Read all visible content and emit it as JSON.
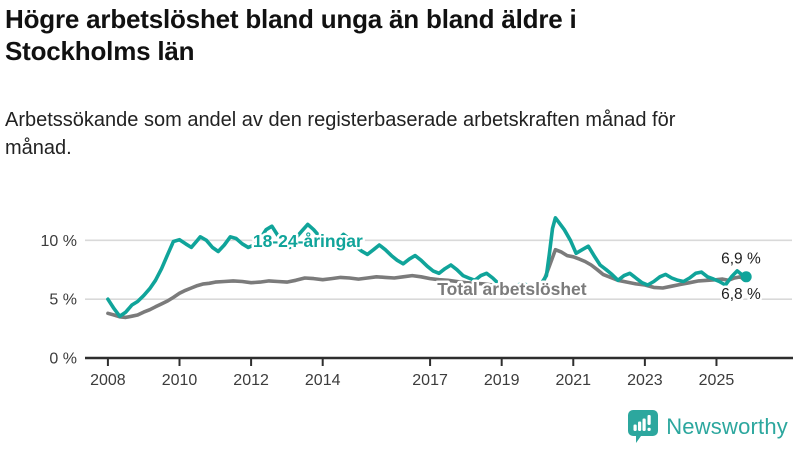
{
  "header": {
    "title": "Högre arbetslöshet bland unga än bland äldre i Stockholms län",
    "subtitle": "Arbetssökande som andel av den registerbaserade arbetskraften månad för månad."
  },
  "branding": {
    "name": "Newsworthy",
    "color": "#2ca79e"
  },
  "chart_data": {
    "type": "line",
    "title": "Högre arbetslöshet bland unga än bland äldre i Stockholms län",
    "xlabel": "",
    "ylabel": "",
    "xlim": [
      2007.36,
      2027.11
    ],
    "ylim": [
      0,
      13
    ],
    "grid": "horizontal",
    "legend_position": "inline-labels",
    "colors": {
      "axis": "#2e2e2e",
      "grid": "#d9d9d9",
      "value_label": "#1f1f1f"
    },
    "y_ticks": [
      {
        "value": 0,
        "label": "0 %"
      },
      {
        "value": 5,
        "label": "5 %"
      },
      {
        "value": 10,
        "label": "10 %"
      }
    ],
    "x_ticks": [
      {
        "year": 2008,
        "label": "2008"
      },
      {
        "year": 2010,
        "label": "2010"
      },
      {
        "year": 2012,
        "label": "2012"
      },
      {
        "year": 2014,
        "label": "2014"
      },
      {
        "year": 2017,
        "label": "2017"
      },
      {
        "year": 2019,
        "label": "2019"
      },
      {
        "year": 2021,
        "label": "2021"
      },
      {
        "year": 2023,
        "label": "2023"
      },
      {
        "year": 2025,
        "label": "2025"
      }
    ],
    "series": [
      {
        "name": "18-24-åringar",
        "color": "#10a49a",
        "end_label": "6,9 %",
        "end_dot": true,
        "label_pos": {
          "year": 2012.05,
          "value": 9.95
        },
        "points": [
          [
            2008,
            5.0
          ],
          [
            2008.17,
            4.2
          ],
          [
            2008.33,
            3.55
          ],
          [
            2008.5,
            3.9
          ],
          [
            2008.67,
            4.5
          ],
          [
            2008.83,
            4.8
          ],
          [
            2009,
            5.3
          ],
          [
            2009.17,
            5.9
          ],
          [
            2009.33,
            6.6
          ],
          [
            2009.5,
            7.6
          ],
          [
            2009.67,
            8.8
          ],
          [
            2009.83,
            9.9
          ],
          [
            2010,
            10.05
          ],
          [
            2010.17,
            9.7
          ],
          [
            2010.33,
            9.4
          ],
          [
            2010.5,
            10.0
          ],
          [
            2010.58,
            10.3
          ],
          [
            2010.75,
            10.0
          ],
          [
            2010.92,
            9.4
          ],
          [
            2011.08,
            9.05
          ],
          [
            2011.25,
            9.6
          ],
          [
            2011.42,
            10.3
          ],
          [
            2011.58,
            10.15
          ],
          [
            2011.75,
            9.7
          ],
          [
            2011.92,
            9.4
          ],
          [
            2012.08,
            9.6
          ],
          [
            2012.25,
            10.1
          ],
          [
            2012.42,
            10.9
          ],
          [
            2012.58,
            11.2
          ],
          [
            2012.75,
            10.4
          ],
          [
            2012.92,
            9.5
          ],
          [
            2013.08,
            9.4
          ],
          [
            2013.25,
            10.2
          ],
          [
            2013.42,
            10.8
          ],
          [
            2013.58,
            11.35
          ],
          [
            2013.75,
            10.9
          ],
          [
            2013.92,
            10.3
          ],
          [
            2014.08,
            9.9
          ],
          [
            2014.25,
            9.6
          ],
          [
            2014.42,
            10.0
          ],
          [
            2014.58,
            10.5
          ],
          [
            2014.75,
            10.1
          ],
          [
            2014.92,
            9.5
          ],
          [
            2015.08,
            9.1
          ],
          [
            2015.25,
            8.8
          ],
          [
            2015.42,
            9.2
          ],
          [
            2015.58,
            9.6
          ],
          [
            2015.75,
            9.2
          ],
          [
            2015.92,
            8.7
          ],
          [
            2016.08,
            8.3
          ],
          [
            2016.25,
            8.0
          ],
          [
            2016.42,
            8.4
          ],
          [
            2016.58,
            8.7
          ],
          [
            2016.75,
            8.3
          ],
          [
            2016.92,
            7.8
          ],
          [
            2017.08,
            7.4
          ],
          [
            2017.25,
            7.2
          ],
          [
            2017.42,
            7.6
          ],
          [
            2017.58,
            7.9
          ],
          [
            2017.75,
            7.5
          ],
          [
            2017.92,
            7.0
          ],
          [
            2018.08,
            6.8
          ],
          [
            2018.25,
            6.6
          ],
          [
            2018.42,
            7.0
          ],
          [
            2018.58,
            7.2
          ],
          [
            2018.75,
            6.8
          ],
          [
            2018.92,
            6.3
          ],
          [
            2019.08,
            5.9
          ],
          [
            2019.25,
            5.7
          ],
          [
            2019.42,
            6.1
          ],
          [
            2019.58,
            6.4
          ],
          [
            2019.75,
            6.1
          ],
          [
            2019.92,
            5.9
          ],
          [
            2020.08,
            6.2
          ],
          [
            2020.25,
            7.0
          ],
          [
            2020.33,
            8.8
          ],
          [
            2020.42,
            11.0
          ],
          [
            2020.5,
            11.9
          ],
          [
            2020.58,
            11.6
          ],
          [
            2020.75,
            10.9
          ],
          [
            2020.92,
            10.0
          ],
          [
            2021.08,
            8.9
          ],
          [
            2021.25,
            9.2
          ],
          [
            2021.42,
            9.5
          ],
          [
            2021.58,
            8.7
          ],
          [
            2021.75,
            7.9
          ],
          [
            2021.92,
            7.5
          ],
          [
            2022.08,
            7.1
          ],
          [
            2022.25,
            6.6
          ],
          [
            2022.42,
            7.0
          ],
          [
            2022.58,
            7.2
          ],
          [
            2022.75,
            6.8
          ],
          [
            2022.92,
            6.4
          ],
          [
            2023.08,
            6.2
          ],
          [
            2023.25,
            6.5
          ],
          [
            2023.42,
            6.9
          ],
          [
            2023.58,
            7.1
          ],
          [
            2023.75,
            6.8
          ],
          [
            2023.92,
            6.6
          ],
          [
            2024.08,
            6.5
          ],
          [
            2024.25,
            6.8
          ],
          [
            2024.42,
            7.2
          ],
          [
            2024.58,
            7.3
          ],
          [
            2024.75,
            6.9
          ],
          [
            2024.92,
            6.7
          ],
          [
            2025.08,
            6.5
          ],
          [
            2025.25,
            6.2
          ],
          [
            2025.42,
            6.9
          ],
          [
            2025.58,
            7.4
          ],
          [
            2025.7,
            7.1
          ],
          [
            2025.83,
            6.9
          ]
        ]
      },
      {
        "name": "Total arbetslöshet",
        "color": "#7b7b7b",
        "end_label": "6,8 %",
        "end_dot": false,
        "label_pos": {
          "year": 2017.2,
          "value": 5.85
        },
        "points": [
          [
            2008,
            3.8
          ],
          [
            2008.17,
            3.65
          ],
          [
            2008.33,
            3.5
          ],
          [
            2008.5,
            3.45
          ],
          [
            2008.67,
            3.55
          ],
          [
            2008.83,
            3.65
          ],
          [
            2009,
            3.9
          ],
          [
            2009.17,
            4.1
          ],
          [
            2009.33,
            4.35
          ],
          [
            2009.5,
            4.6
          ],
          [
            2009.67,
            4.85
          ],
          [
            2009.83,
            5.15
          ],
          [
            2010,
            5.5
          ],
          [
            2010.17,
            5.75
          ],
          [
            2010.33,
            5.95
          ],
          [
            2010.5,
            6.15
          ],
          [
            2010.67,
            6.3
          ],
          [
            2010.83,
            6.35
          ],
          [
            2011,
            6.45
          ],
          [
            2011.25,
            6.5
          ],
          [
            2011.5,
            6.55
          ],
          [
            2011.75,
            6.5
          ],
          [
            2012,
            6.4
          ],
          [
            2012.25,
            6.45
          ],
          [
            2012.5,
            6.55
          ],
          [
            2012.75,
            6.5
          ],
          [
            2013,
            6.45
          ],
          [
            2013.25,
            6.6
          ],
          [
            2013.5,
            6.8
          ],
          [
            2013.75,
            6.75
          ],
          [
            2014,
            6.65
          ],
          [
            2014.25,
            6.75
          ],
          [
            2014.5,
            6.85
          ],
          [
            2014.75,
            6.8
          ],
          [
            2015,
            6.7
          ],
          [
            2015.25,
            6.8
          ],
          [
            2015.5,
            6.9
          ],
          [
            2015.75,
            6.85
          ],
          [
            2016,
            6.8
          ],
          [
            2016.25,
            6.9
          ],
          [
            2016.5,
            7.0
          ],
          [
            2016.75,
            6.9
          ],
          [
            2017,
            6.75
          ],
          [
            2017.25,
            6.65
          ],
          [
            2017.5,
            6.6
          ],
          [
            2017.75,
            6.5
          ],
          [
            2018,
            6.4
          ],
          [
            2018.25,
            6.35
          ],
          [
            2018.5,
            6.3
          ],
          [
            2018.75,
            6.2
          ],
          [
            2019,
            6.1
          ],
          [
            2019.25,
            6.05
          ],
          [
            2019.5,
            6.15
          ],
          [
            2019.75,
            6.1
          ],
          [
            2020,
            6.2
          ],
          [
            2020.17,
            6.5
          ],
          [
            2020.33,
            7.8
          ],
          [
            2020.5,
            9.2
          ],
          [
            2020.67,
            9.0
          ],
          [
            2020.83,
            8.7
          ],
          [
            2021,
            8.6
          ],
          [
            2021.17,
            8.4
          ],
          [
            2021.33,
            8.2
          ],
          [
            2021.5,
            7.9
          ],
          [
            2021.67,
            7.5
          ],
          [
            2021.83,
            7.1
          ],
          [
            2022,
            6.9
          ],
          [
            2022.25,
            6.6
          ],
          [
            2022.5,
            6.45
          ],
          [
            2022.75,
            6.3
          ],
          [
            2023,
            6.2
          ],
          [
            2023.25,
            6.0
          ],
          [
            2023.5,
            5.95
          ],
          [
            2023.75,
            6.1
          ],
          [
            2024,
            6.25
          ],
          [
            2024.25,
            6.4
          ],
          [
            2024.5,
            6.55
          ],
          [
            2024.75,
            6.6
          ],
          [
            2025,
            6.65
          ],
          [
            2025.17,
            6.7
          ],
          [
            2025.33,
            6.6
          ],
          [
            2025.5,
            6.8
          ],
          [
            2025.67,
            6.9
          ],
          [
            2025.75,
            6.7
          ],
          [
            2025.83,
            6.8
          ]
        ]
      }
    ],
    "end_labels": [
      {
        "text": "6,9 %",
        "year": 2025.13,
        "value": 8.5
      },
      {
        "text": "6,8 %",
        "year": 2025.13,
        "value": 5.5
      }
    ]
  }
}
